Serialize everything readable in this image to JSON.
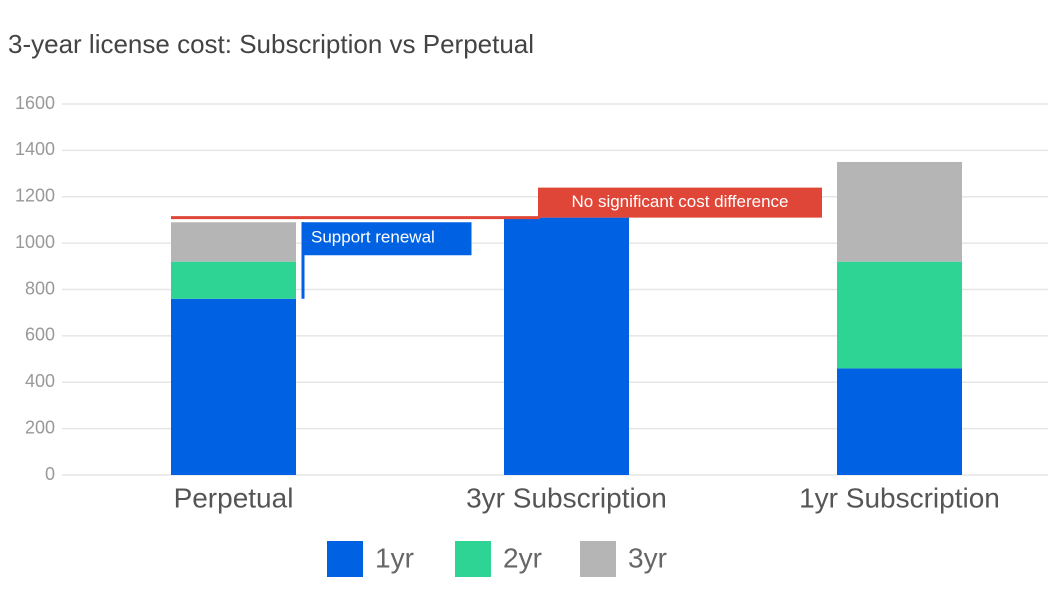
{
  "chart_data": {
    "type": "stacked_bar",
    "title": "3-year license cost: Subscription vs Perpetual",
    "categories": [
      "Perpetual",
      "3yr Subscription",
      "1yr Subscription"
    ],
    "series": [
      {
        "name": "1yr",
        "color": "#0062e3",
        "values": [
          760,
          1110,
          460
        ]
      },
      {
        "name": "2yr",
        "color": "#2dd494",
        "values": [
          160,
          0,
          460
        ]
      },
      {
        "name": "3yr",
        "color": "#b5b5b5",
        "values": [
          170,
          0,
          430
        ]
      }
    ],
    "ylim": [
      0,
      1600
    ],
    "yticks": [
      0,
      200,
      400,
      600,
      800,
      1000,
      1200,
      1400,
      1600
    ],
    "grid": true,
    "annotations": [
      {
        "text": "No significant cost difference",
        "color": "#df4638"
      },
      {
        "text": "Support renewal",
        "color": "#0062e3"
      }
    ]
  }
}
